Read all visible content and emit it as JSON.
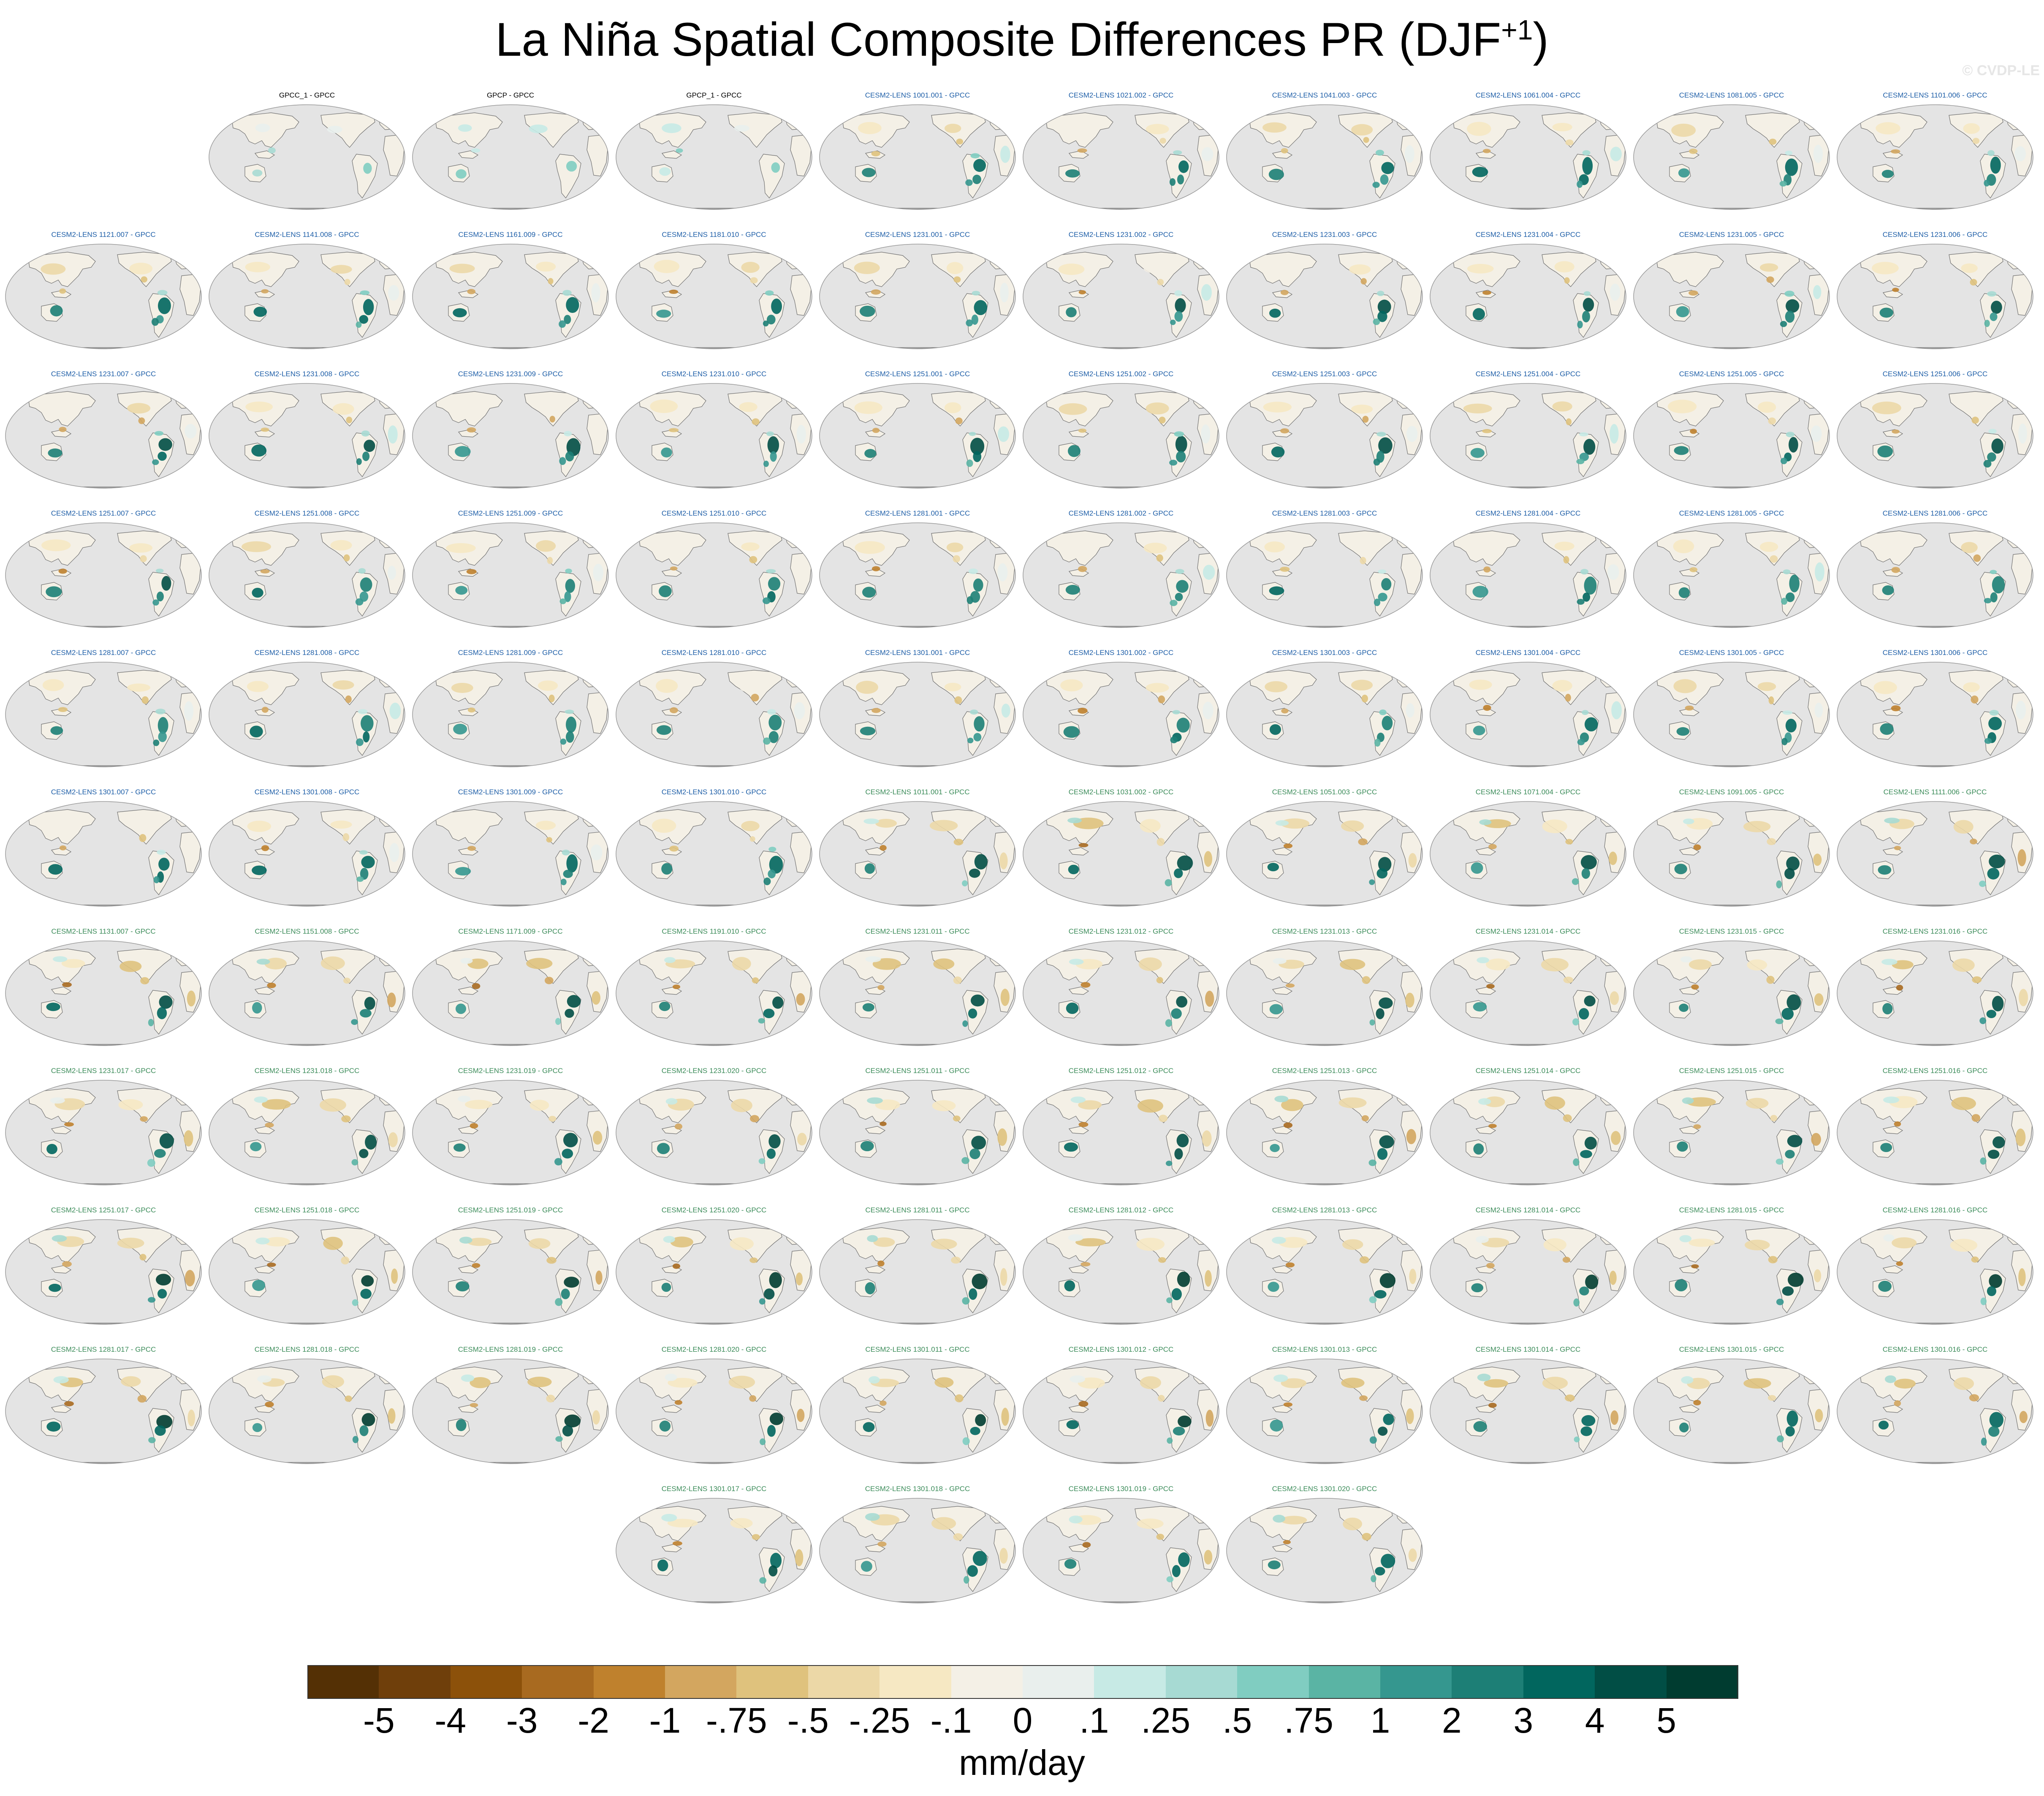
{
  "title": "La Niña Spatial Composite Differences PR (DJF",
  "title_superscript": "+1",
  "title_close": ")",
  "watermark": "© CVDP-LE",
  "units": "mm/day",
  "colors": {
    "observed_title": "#000000",
    "ensemble_a_title": "#1f5fa8",
    "ensemble_b_title": "#3c8c5a",
    "ocean": "#e4e4e4",
    "coast": "#707070"
  },
  "colorbar": {
    "colors": [
      "#543005",
      "#6f3f0b",
      "#8c510a",
      "#a86a20",
      "#bf812d",
      "#d3a65f",
      "#dfc27d",
      "#ecd8a7",
      "#f6e8c3",
      "#f4f0e6",
      "#e9efed",
      "#c7eae5",
      "#a7dad3",
      "#80cdc1",
      "#5ab4a4",
      "#35978f",
      "#1d7f76",
      "#01665e",
      "#014e45",
      "#003c30"
    ],
    "ticks": [
      "-5",
      "-4",
      "-3",
      "-2",
      "-1",
      "-.75",
      "-.5",
      "-.25",
      "-.1",
      "0",
      ".1",
      ".25",
      ".5",
      ".75",
      "1",
      "2",
      "3",
      "4",
      "5"
    ]
  },
  "chart_data": {
    "type": "heatmap",
    "panel_count": 103,
    "panels": [
      {
        "label": "GPCC_1 - GPCC",
        "group": "observed"
      },
      {
        "label": "GPCP - GPCC",
        "group": "observed"
      },
      {
        "label": "GPCP_1 - GPCC",
        "group": "observed"
      },
      {
        "label": "CESM2-LENS 1001.001 - GPCC",
        "group": "a"
      },
      {
        "label": "CESM2-LENS 1021.002 - GPCC",
        "group": "a"
      },
      {
        "label": "CESM2-LENS 1041.003 - GPCC",
        "group": "a"
      },
      {
        "label": "CESM2-LENS 1061.004 - GPCC",
        "group": "a"
      },
      {
        "label": "CESM2-LENS 1081.005 - GPCC",
        "group": "a"
      },
      {
        "label": "CESM2-LENS 1101.006 - GPCC",
        "group": "a"
      },
      {
        "label": "CESM2-LENS 1121.007 - GPCC",
        "group": "a"
      },
      {
        "label": "CESM2-LENS 1141.008 - GPCC",
        "group": "a"
      },
      {
        "label": "CESM2-LENS 1161.009 - GPCC",
        "group": "a"
      },
      {
        "label": "CESM2-LENS 1181.010 - GPCC",
        "group": "a"
      },
      {
        "label": "CESM2-LENS 1231.001 - GPCC",
        "group": "a"
      },
      {
        "label": "CESM2-LENS 1231.002 - GPCC",
        "group": "a"
      },
      {
        "label": "CESM2-LENS 1231.003 - GPCC",
        "group": "a"
      },
      {
        "label": "CESM2-LENS 1231.004 - GPCC",
        "group": "a"
      },
      {
        "label": "CESM2-LENS 1231.005 - GPCC",
        "group": "a"
      },
      {
        "label": "CESM2-LENS 1231.006 - GPCC",
        "group": "a"
      },
      {
        "label": "CESM2-LENS 1231.007 - GPCC",
        "group": "a"
      },
      {
        "label": "CESM2-LENS 1231.008 - GPCC",
        "group": "a"
      },
      {
        "label": "CESM2-LENS 1231.009 - GPCC",
        "group": "a"
      },
      {
        "label": "CESM2-LENS 1231.010 - GPCC",
        "group": "a"
      },
      {
        "label": "CESM2-LENS 1251.001 - GPCC",
        "group": "a"
      },
      {
        "label": "CESM2-LENS 1251.002 - GPCC",
        "group": "a"
      },
      {
        "label": "CESM2-LENS 1251.003 - GPCC",
        "group": "a"
      },
      {
        "label": "CESM2-LENS 1251.004 - GPCC",
        "group": "a"
      },
      {
        "label": "CESM2-LENS 1251.005 - GPCC",
        "group": "a"
      },
      {
        "label": "CESM2-LENS 1251.006 - GPCC",
        "group": "a"
      },
      {
        "label": "CESM2-LENS 1251.007 - GPCC",
        "group": "a"
      },
      {
        "label": "CESM2-LENS 1251.008 - GPCC",
        "group": "a"
      },
      {
        "label": "CESM2-LENS 1251.009 - GPCC",
        "group": "a"
      },
      {
        "label": "CESM2-LENS 1251.010 - GPCC",
        "group": "a"
      },
      {
        "label": "CESM2-LENS 1281.001 - GPCC",
        "group": "a"
      },
      {
        "label": "CESM2-LENS 1281.002 - GPCC",
        "group": "a"
      },
      {
        "label": "CESM2-LENS 1281.003 - GPCC",
        "group": "a"
      },
      {
        "label": "CESM2-LENS 1281.004 - GPCC",
        "group": "a"
      },
      {
        "label": "CESM2-LENS 1281.005 - GPCC",
        "group": "a"
      },
      {
        "label": "CESM2-LENS 1281.006 - GPCC",
        "group": "a"
      },
      {
        "label": "CESM2-LENS 1281.007 - GPCC",
        "group": "a"
      },
      {
        "label": "CESM2-LENS 1281.008 - GPCC",
        "group": "a"
      },
      {
        "label": "CESM2-LENS 1281.009 - GPCC",
        "group": "a"
      },
      {
        "label": "CESM2-LENS 1281.010 - GPCC",
        "group": "a"
      },
      {
        "label": "CESM2-LENS 1301.001 - GPCC",
        "group": "a"
      },
      {
        "label": "CESM2-LENS 1301.002 - GPCC",
        "group": "a"
      },
      {
        "label": "CESM2-LENS 1301.003 - GPCC",
        "group": "a"
      },
      {
        "label": "CESM2-LENS 1301.004 - GPCC",
        "group": "a"
      },
      {
        "label": "CESM2-LENS 1301.005 - GPCC",
        "group": "a"
      },
      {
        "label": "CESM2-LENS 1301.006 - GPCC",
        "group": "a"
      },
      {
        "label": "CESM2-LENS 1301.007 - GPCC",
        "group": "a"
      },
      {
        "label": "CESM2-LENS 1301.008 - GPCC",
        "group": "a"
      },
      {
        "label": "CESM2-LENS 1301.009 - GPCC",
        "group": "a"
      },
      {
        "label": "CESM2-LENS 1301.010 - GPCC",
        "group": "a"
      },
      {
        "label": "CESM2-LENS 1011.001 - GPCC",
        "group": "b"
      },
      {
        "label": "CESM2-LENS 1031.002 - GPCC",
        "group": "b"
      },
      {
        "label": "CESM2-LENS 1051.003 - GPCC",
        "group": "b"
      },
      {
        "label": "CESM2-LENS 1071.004 - GPCC",
        "group": "b"
      },
      {
        "label": "CESM2-LENS 1091.005 - GPCC",
        "group": "b"
      },
      {
        "label": "CESM2-LENS 1111.006 - GPCC",
        "group": "b"
      },
      {
        "label": "CESM2-LENS 1131.007 - GPCC",
        "group": "b"
      },
      {
        "label": "CESM2-LENS 1151.008 - GPCC",
        "group": "b"
      },
      {
        "label": "CESM2-LENS 1171.009 - GPCC",
        "group": "b"
      },
      {
        "label": "CESM2-LENS 1191.010 - GPCC",
        "group": "b"
      },
      {
        "label": "CESM2-LENS 1231.011 - GPCC",
        "group": "b"
      },
      {
        "label": "CESM2-LENS 1231.012 - GPCC",
        "group": "b"
      },
      {
        "label": "CESM2-LENS 1231.013 - GPCC",
        "group": "b"
      },
      {
        "label": "CESM2-LENS 1231.014 - GPCC",
        "group": "b"
      },
      {
        "label": "CESM2-LENS 1231.015 - GPCC",
        "group": "b"
      },
      {
        "label": "CESM2-LENS 1231.016 - GPCC",
        "group": "b"
      },
      {
        "label": "CESM2-LENS 1231.017 - GPCC",
        "group": "b"
      },
      {
        "label": "CESM2-LENS 1231.018 - GPCC",
        "group": "b"
      },
      {
        "label": "CESM2-LENS 1231.019 - GPCC",
        "group": "b"
      },
      {
        "label": "CESM2-LENS 1231.020 - GPCC",
        "group": "b"
      },
      {
        "label": "CESM2-LENS 1251.011 - GPCC",
        "group": "b"
      },
      {
        "label": "CESM2-LENS 1251.012 - GPCC",
        "group": "b"
      },
      {
        "label": "CESM2-LENS 1251.013 - GPCC",
        "group": "b"
      },
      {
        "label": "CESM2-LENS 1251.014 - GPCC",
        "group": "b"
      },
      {
        "label": "CESM2-LENS 1251.015 - GPCC",
        "group": "b"
      },
      {
        "label": "CESM2-LENS 1251.016 - GPCC",
        "group": "b"
      },
      {
        "label": "CESM2-LENS 1251.017 - GPCC",
        "group": "b"
      },
      {
        "label": "CESM2-LENS 1251.018 - GPCC",
        "group": "b"
      },
      {
        "label": "CESM2-LENS 1251.019 - GPCC",
        "group": "b"
      },
      {
        "label": "CESM2-LENS 1251.020 - GPCC",
        "group": "b"
      },
      {
        "label": "CESM2-LENS 1281.011 - GPCC",
        "group": "b"
      },
      {
        "label": "CESM2-LENS 1281.012 - GPCC",
        "group": "b"
      },
      {
        "label": "CESM2-LENS 1281.013 - GPCC",
        "group": "b"
      },
      {
        "label": "CESM2-LENS 1281.014 - GPCC",
        "group": "b"
      },
      {
        "label": "CESM2-LENS 1281.015 - GPCC",
        "group": "b"
      },
      {
        "label": "CESM2-LENS 1281.016 - GPCC",
        "group": "b"
      },
      {
        "label": "CESM2-LENS 1281.017 - GPCC",
        "group": "b"
      },
      {
        "label": "CESM2-LENS 1281.018 - GPCC",
        "group": "b"
      },
      {
        "label": "CESM2-LENS 1281.019 - GPCC",
        "group": "b"
      },
      {
        "label": "CESM2-LENS 1281.020 - GPCC",
        "group": "b"
      },
      {
        "label": "CESM2-LENS 1301.011 - GPCC",
        "group": "b"
      },
      {
        "label": "CESM2-LENS 1301.012 - GPCC",
        "group": "b"
      },
      {
        "label": "CESM2-LENS 1301.013 - GPCC",
        "group": "b"
      },
      {
        "label": "CESM2-LENS 1301.014 - GPCC",
        "group": "b"
      },
      {
        "label": "CESM2-LENS 1301.015 - GPCC",
        "group": "b"
      },
      {
        "label": "CESM2-LENS 1301.016 - GPCC",
        "group": "b"
      },
      {
        "label": "CESM2-LENS 1301.017 - GPCC",
        "group": "b"
      },
      {
        "label": "CESM2-LENS 1301.018 - GPCC",
        "group": "b"
      },
      {
        "label": "CESM2-LENS 1301.019 - GPCC",
        "group": "b"
      },
      {
        "label": "CESM2-LENS 1301.020 - GPCC",
        "group": "b"
      }
    ]
  }
}
